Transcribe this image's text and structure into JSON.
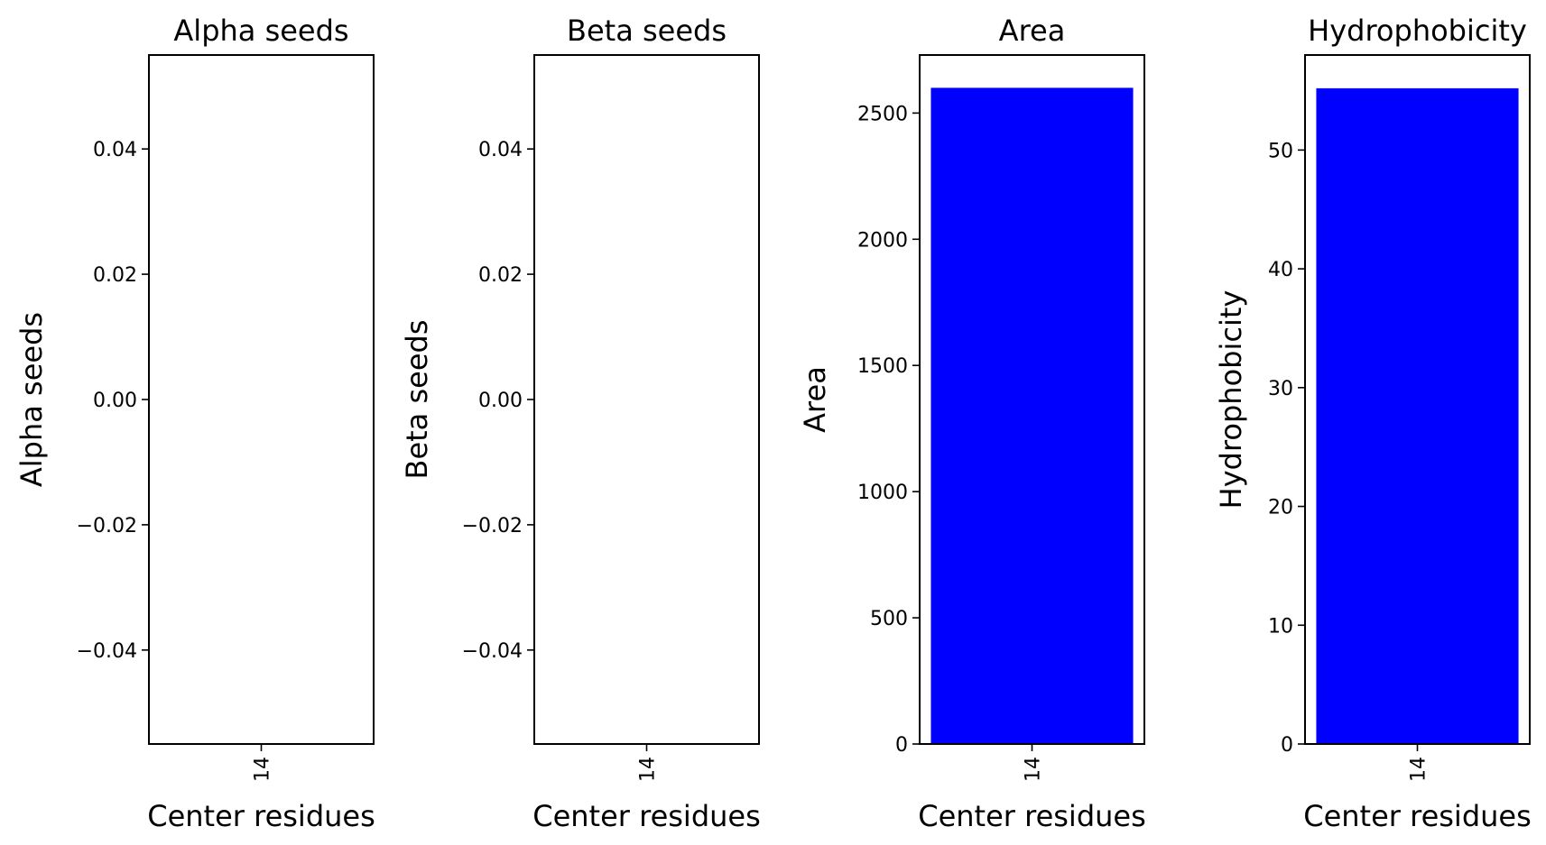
{
  "chart_data": [
    {
      "type": "bar",
      "title": "Alpha seeds",
      "xlabel": "Center residues",
      "ylabel": "Alpha seeds",
      "categories": [
        "14"
      ],
      "values": [
        0
      ],
      "ylim": [
        -0.055,
        0.055
      ],
      "yticks": [
        -0.04,
        -0.02,
        0.0,
        0.02,
        0.04
      ],
      "ytick_labels": [
        "−0.04",
        "−0.02",
        "0.00",
        "0.02",
        "0.04"
      ],
      "color": "#0000ff",
      "grid": false
    },
    {
      "type": "bar",
      "title": "Beta seeds",
      "xlabel": "Center residues",
      "ylabel": "Beta seeds",
      "categories": [
        "14"
      ],
      "values": [
        0
      ],
      "ylim": [
        -0.055,
        0.055
      ],
      "yticks": [
        -0.04,
        -0.02,
        0.0,
        0.02,
        0.04
      ],
      "ytick_labels": [
        "−0.04",
        "−0.02",
        "0.00",
        "0.02",
        "0.04"
      ],
      "color": "#0000ff",
      "grid": false
    },
    {
      "type": "bar",
      "title": "Area",
      "xlabel": "Center residues",
      "ylabel": "Area",
      "categories": [
        "14"
      ],
      "values": [
        2600
      ],
      "ylim": [
        0,
        2730
      ],
      "yticks": [
        0,
        500,
        1000,
        1500,
        2000,
        2500
      ],
      "ytick_labels": [
        "0",
        "500",
        "1000",
        "1500",
        "2000",
        "2500"
      ],
      "color": "#0000ff",
      "grid": false
    },
    {
      "type": "bar",
      "title": "Hydrophobicity",
      "xlabel": "Center residues",
      "ylabel": "Hydrophobicity",
      "categories": [
        "14"
      ],
      "values": [
        55.2
      ],
      "ylim": [
        0,
        58
      ],
      "yticks": [
        0,
        10,
        20,
        30,
        40,
        50
      ],
      "ytick_labels": [
        "0",
        "10",
        "20",
        "30",
        "40",
        "50"
      ],
      "color": "#0000ff",
      "grid": false
    }
  ]
}
